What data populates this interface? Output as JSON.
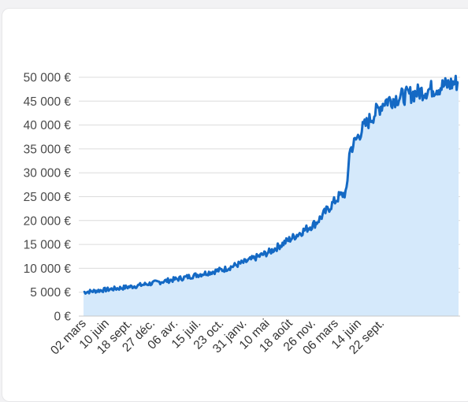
{
  "chart_data": {
    "type": "area",
    "title": "",
    "xlabel": "",
    "ylabel": "",
    "ylim": [
      0,
      50000
    ],
    "grid": true,
    "legend": "none",
    "y_ticks": [
      {
        "value": 0,
        "label": "0 €"
      },
      {
        "value": 5000,
        "label": "5 000 €"
      },
      {
        "value": 10000,
        "label": "10 000 €"
      },
      {
        "value": 15000,
        "label": "15 000 €"
      },
      {
        "value": 20000,
        "label": "20 000 €"
      },
      {
        "value": 25000,
        "label": "25 000 €"
      },
      {
        "value": 30000,
        "label": "30 000 €"
      },
      {
        "value": 35000,
        "label": "35 000 €"
      },
      {
        "value": 40000,
        "label": "40 000 €"
      },
      {
        "value": 45000,
        "label": "45 000 €"
      },
      {
        "value": 50000,
        "label": "50 000 €"
      }
    ],
    "x_ticks": [
      "02 mars",
      "10 juin",
      "18 sept.",
      "27 déc.",
      "06 avr.",
      "15 juil.",
      "23 oct.",
      "31 janv.",
      "10 mai",
      "18 août",
      "26 nov.",
      "06 mars",
      "14 juin",
      "22 sept."
    ],
    "series": [
      {
        "values": [
          {
            "x": "02 mars",
            "y": 5000
          },
          {
            "x": "10 juin",
            "y": 5600
          },
          {
            "x": "18 sept.",
            "y": 6200
          },
          {
            "x": "27 déc.",
            "y": 7000
          },
          {
            "x": "06 avr.",
            "y": 7800
          },
          {
            "x": "15 juil.",
            "y": 8800
          },
          {
            "x": "23 oct.",
            "y": 9800
          },
          {
            "x": "31 janv.",
            "y": 11500
          },
          {
            "x": "10 mai",
            "y": 13500
          },
          {
            "x": "18 août",
            "y": 16500
          },
          {
            "x": "26 nov.",
            "y": 19500
          },
          {
            "x": "06 mars",
            "y": 25000
          },
          {
            "x": "14 juin",
            "y": 39000
          },
          {
            "x": "22 sept.",
            "y": 45000
          },
          {
            "x": "end",
            "y": 49000
          }
        ]
      }
    ],
    "colors": {
      "line": "#1469c4",
      "fill": "#d5e9fb",
      "grid": "#dcdcdc",
      "axis": "#c8c8c8"
    }
  }
}
